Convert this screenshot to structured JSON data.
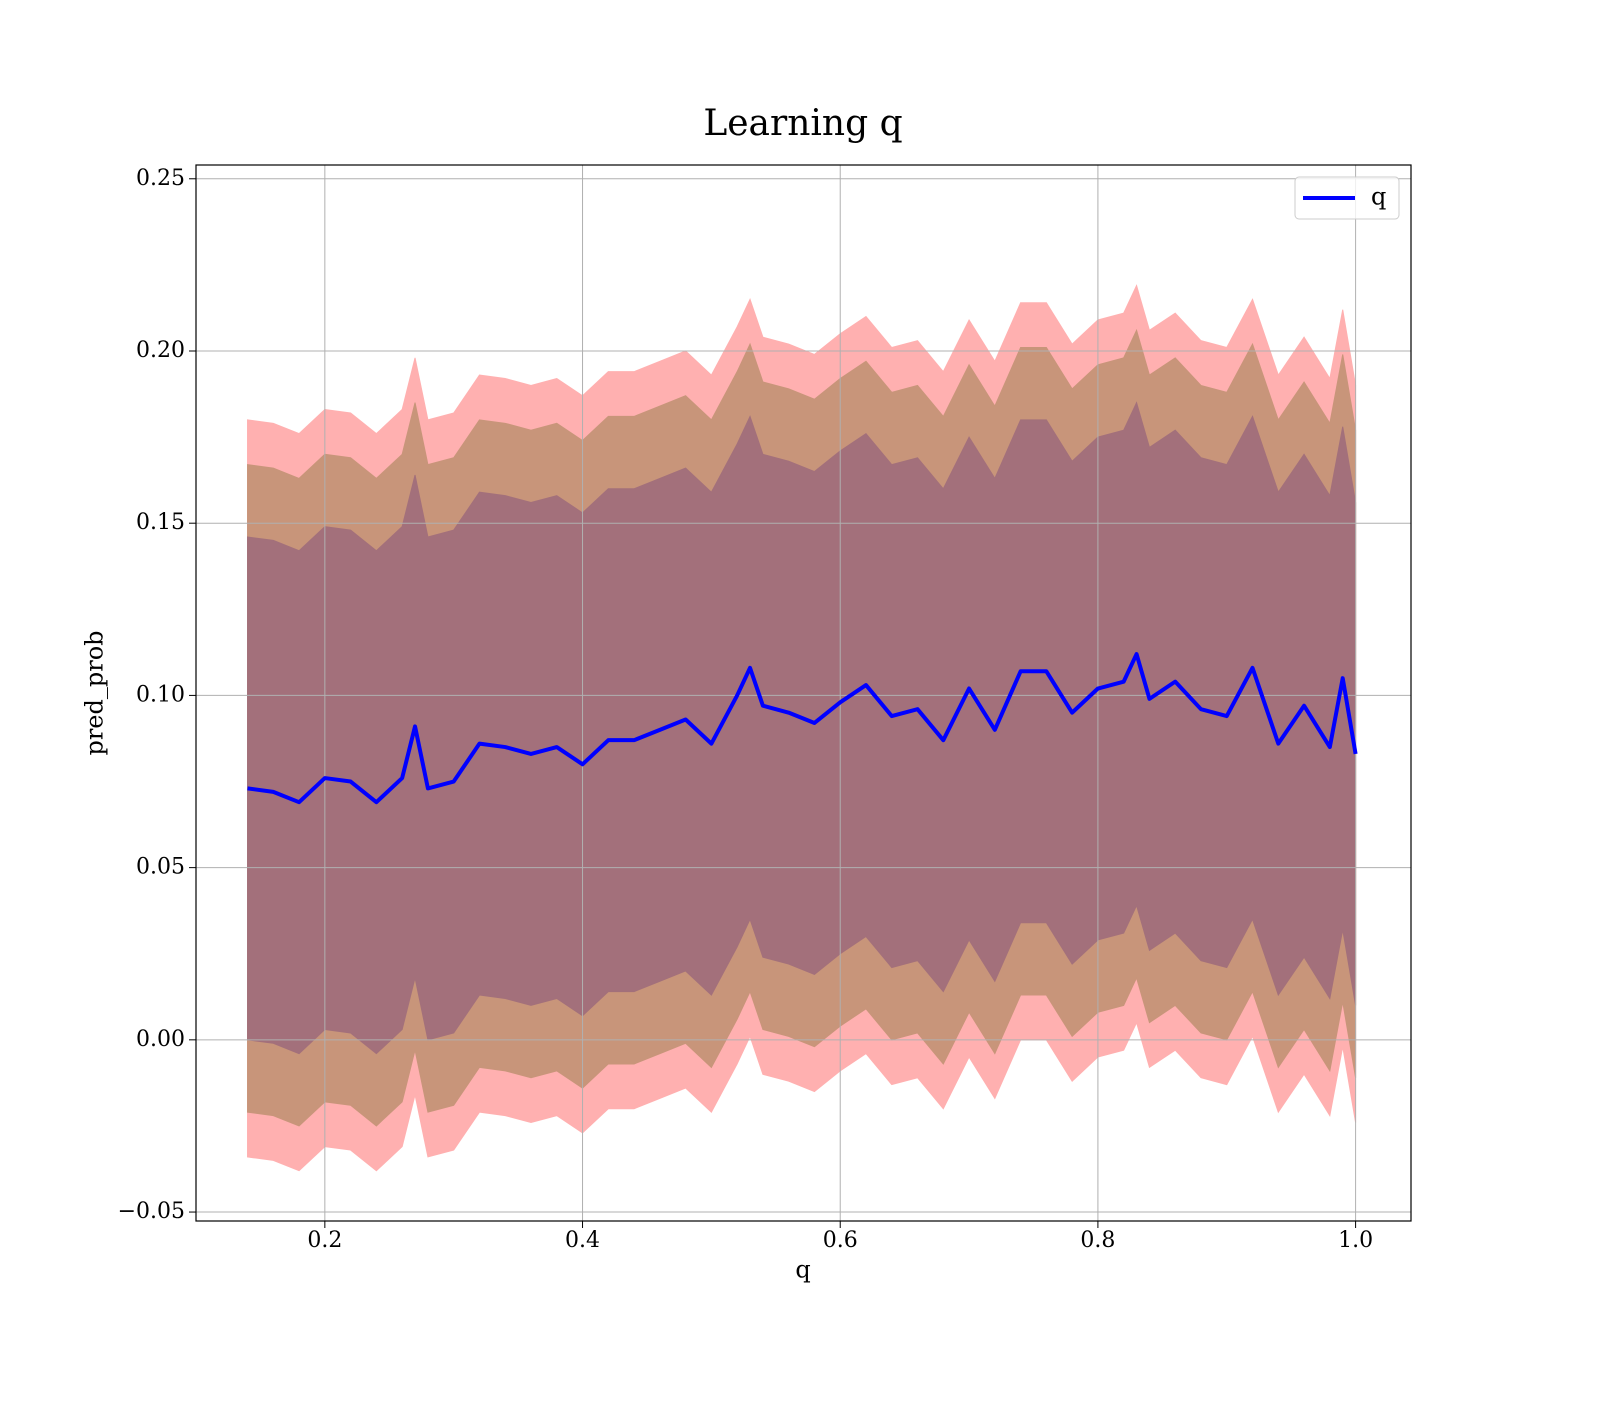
{
  "chart_data": {
    "type": "line",
    "title": "Learning q",
    "xlabel": "q",
    "ylabel": "pred_prob",
    "x": [
      0.14,
      0.16,
      0.18,
      0.2,
      0.22,
      0.24,
      0.26,
      0.27,
      0.28,
      0.3,
      0.32,
      0.34,
      0.36,
      0.38,
      0.4,
      0.42,
      0.44,
      0.46,
      0.48,
      0.5,
      0.52,
      0.53,
      0.54,
      0.56,
      0.58,
      0.6,
      0.62,
      0.64,
      0.66,
      0.68,
      0.7,
      0.72,
      0.74,
      0.76,
      0.78,
      0.8,
      0.82,
      0.83,
      0.84,
      0.86,
      0.88,
      0.9,
      0.92,
      0.94,
      0.96,
      0.98,
      0.99,
      1.0
    ],
    "series": [
      {
        "name": "q",
        "color": "#0000ff",
        "values": [
          0.073,
          0.072,
          0.069,
          0.076,
          0.075,
          0.069,
          0.076,
          0.091,
          0.073,
          0.075,
          0.086,
          0.085,
          0.083,
          0.085,
          0.08,
          0.087,
          0.087,
          0.09,
          0.093,
          0.086,
          0.1,
          0.108,
          0.097,
          0.095,
          0.092,
          0.098,
          0.103,
          0.094,
          0.096,
          0.087,
          0.102,
          0.09,
          0.107,
          0.107,
          0.095,
          0.102,
          0.104,
          0.112,
          0.099,
          0.104,
          0.096,
          0.094,
          0.108,
          0.086,
          0.097,
          0.085,
          0.105,
          0.083
        ]
      }
    ],
    "bands": [
      {
        "color": "#ffb0b0",
        "upper": [
          0.18,
          0.179,
          0.176,
          0.183,
          0.182,
          0.176,
          0.183,
          0.198,
          0.18,
          0.182,
          0.193,
          0.192,
          0.19,
          0.192,
          0.187,
          0.194,
          0.194,
          0.197,
          0.2,
          0.193,
          0.207,
          0.215,
          0.204,
          0.202,
          0.199,
          0.205,
          0.21,
          0.201,
          0.203,
          0.194,
          0.209,
          0.197,
          0.214,
          0.214,
          0.202,
          0.209,
          0.211,
          0.219,
          0.206,
          0.211,
          0.203,
          0.201,
          0.215,
          0.193,
          0.204,
          0.192,
          0.212,
          0.19
        ],
        "lower": [
          -0.034,
          -0.035,
          -0.038,
          -0.031,
          -0.032,
          -0.038,
          -0.031,
          -0.016,
          -0.034,
          -0.032,
          -0.021,
          -0.022,
          -0.024,
          -0.022,
          -0.027,
          -0.02,
          -0.02,
          -0.017,
          -0.014,
          -0.021,
          -0.007,
          0.001,
          -0.01,
          -0.012,
          -0.015,
          -0.009,
          -0.004,
          -0.013,
          -0.011,
          -0.02,
          -0.005,
          -0.017,
          0.0,
          0.0,
          -0.012,
          -0.005,
          -0.003,
          0.005,
          -0.008,
          -0.003,
          -0.011,
          -0.013,
          0.001,
          -0.021,
          -0.01,
          -0.022,
          -0.002,
          -0.024
        ]
      },
      {
        "color": "#c8957a",
        "upper": [
          0.167,
          0.166,
          0.163,
          0.17,
          0.169,
          0.163,
          0.17,
          0.185,
          0.167,
          0.169,
          0.18,
          0.179,
          0.177,
          0.179,
          0.174,
          0.181,
          0.181,
          0.184,
          0.187,
          0.18,
          0.194,
          0.202,
          0.191,
          0.189,
          0.186,
          0.192,
          0.197,
          0.188,
          0.19,
          0.181,
          0.196,
          0.184,
          0.201,
          0.201,
          0.189,
          0.196,
          0.198,
          0.206,
          0.193,
          0.198,
          0.19,
          0.188,
          0.202,
          0.18,
          0.191,
          0.179,
          0.199,
          0.177
        ],
        "lower": [
          -0.021,
          -0.022,
          -0.025,
          -0.018,
          -0.019,
          -0.025,
          -0.018,
          -0.003,
          -0.021,
          -0.019,
          -0.008,
          -0.009,
          -0.011,
          -0.009,
          -0.014,
          -0.007,
          -0.007,
          -0.004,
          -0.001,
          -0.008,
          0.006,
          0.014,
          0.003,
          0.001,
          -0.002,
          0.004,
          0.009,
          0.0,
          0.002,
          -0.007,
          0.008,
          -0.004,
          0.013,
          0.013,
          0.001,
          0.008,
          0.01,
          0.018,
          0.005,
          0.01,
          0.002,
          0.0,
          0.014,
          -0.008,
          0.003,
          -0.009,
          0.011,
          -0.011
        ]
      },
      {
        "color": "#a3707b",
        "upper": [
          0.146,
          0.145,
          0.142,
          0.149,
          0.148,
          0.142,
          0.149,
          0.164,
          0.146,
          0.148,
          0.159,
          0.158,
          0.156,
          0.158,
          0.153,
          0.16,
          0.16,
          0.163,
          0.166,
          0.159,
          0.173,
          0.181,
          0.17,
          0.168,
          0.165,
          0.171,
          0.176,
          0.167,
          0.169,
          0.16,
          0.175,
          0.163,
          0.18,
          0.18,
          0.168,
          0.175,
          0.177,
          0.185,
          0.172,
          0.177,
          0.169,
          0.167,
          0.181,
          0.159,
          0.17,
          0.158,
          0.178,
          0.156
        ],
        "lower": [
          0.0,
          -0.001,
          -0.004,
          0.003,
          0.002,
          -0.004,
          0.003,
          0.018,
          0.0,
          0.002,
          0.013,
          0.012,
          0.01,
          0.012,
          0.007,
          0.014,
          0.014,
          0.017,
          0.02,
          0.013,
          0.027,
          0.035,
          0.024,
          0.022,
          0.019,
          0.025,
          0.03,
          0.021,
          0.023,
          0.014,
          0.029,
          0.017,
          0.034,
          0.034,
          0.022,
          0.029,
          0.031,
          0.039,
          0.026,
          0.031,
          0.023,
          0.021,
          0.035,
          0.013,
          0.024,
          0.012,
          0.032,
          0.01
        ]
      }
    ],
    "xlim": [
      0.1,
      1.043
    ],
    "ylim": [
      -0.0526,
      0.254
    ],
    "xticks": [
      0.2,
      0.4,
      0.6,
      0.8,
      {
        "value": 1.0,
        "label": "1.0"
      }
    ],
    "yticks": [
      {
        "value": -0.05,
        "label": "−0.05"
      },
      {
        "value": 0.0,
        "label": "0.00"
      },
      0.05,
      {
        "value": 0.1,
        "label": "0.10"
      },
      0.15,
      {
        "value": 0.2,
        "label": "0.20"
      },
      0.25
    ],
    "grid": true,
    "legend": "upper right"
  }
}
